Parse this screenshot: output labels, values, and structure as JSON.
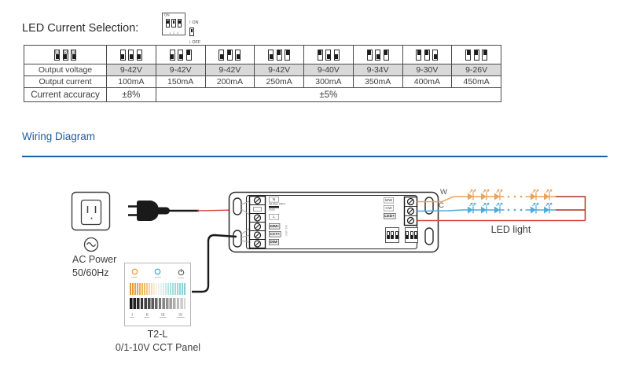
{
  "header": {
    "title": "LED Current Selection:",
    "dip_icon": {
      "on": "ON",
      "states": [
        "up",
        "up",
        "up"
      ],
      "numbers": [
        "1",
        "2",
        "3"
      ],
      "legend_up": "ON",
      "legend_down": "OFF",
      "legend_state": [
        "up"
      ]
    }
  },
  "table": {
    "row_labels": [
      "Output voltage",
      "Output current",
      "Current accuracy"
    ],
    "switch_numbers": [
      "1",
      "2",
      "3"
    ],
    "columns": [
      {
        "dip": [
          "down",
          "down",
          "down"
        ],
        "voltage": "9-42V",
        "current": "100mA"
      },
      {
        "dip": [
          "down",
          "down",
          "up"
        ],
        "voltage": "9-42V",
        "current": "150mA"
      },
      {
        "dip": [
          "down",
          "up",
          "down"
        ],
        "voltage": "9-42V",
        "current": "200mA"
      },
      {
        "dip": [
          "down",
          "up",
          "up"
        ],
        "voltage": "9-42V",
        "current": "250mA"
      },
      {
        "dip": [
          "up",
          "down",
          "down"
        ],
        "voltage": "9-40V",
        "current": "300mA"
      },
      {
        "dip": [
          "up",
          "down",
          "up"
        ],
        "voltage": "9-34V",
        "current": "350mA"
      },
      {
        "dip": [
          "up",
          "up",
          "down"
        ],
        "voltage": "9-30V",
        "current": "400mA"
      },
      {
        "dip": [
          "up",
          "up",
          "up"
        ],
        "voltage": "9-26V",
        "current": "450mA"
      }
    ],
    "accuracy_col1": "±8%",
    "accuracy_rest": "±5%"
  },
  "wiring": {
    "section_title": "Wiring Diagram",
    "ac_power": {
      "line1": "AC Power",
      "line2": "50/60Hz"
    },
    "device": {
      "labels_left": [
        "N",
        "L",
        "DIM+",
        "CCT+",
        "DIM-"
      ],
      "fuse_top": "5A Max 250V",
      "fuse_bottom": "Fuse",
      "signal_note": "0/1-10V",
      "labels_right": [
        "WW",
        "CW",
        "LED+"
      ],
      "dip_blocks": [
        [
          "down",
          "down",
          "down"
        ],
        [
          "down",
          "down",
          "down"
        ]
      ]
    },
    "panel": {
      "name": "T2-L",
      "type": "0/1-10V CCT Panel",
      "scenes": [
        "I",
        "II",
        "III",
        "IV"
      ]
    },
    "led": {
      "label": "LED light",
      "rows": [
        {
          "label": "W",
          "color": "#e8a25b"
        },
        {
          "label": "C",
          "color": "#4fabd8"
        }
      ]
    },
    "colors": {
      "accent_blue": "#1b5ea8",
      "warm": "#e8a25b",
      "cool": "#4fabd8",
      "red": "#d64541",
      "dark_red": "#a93226"
    }
  }
}
